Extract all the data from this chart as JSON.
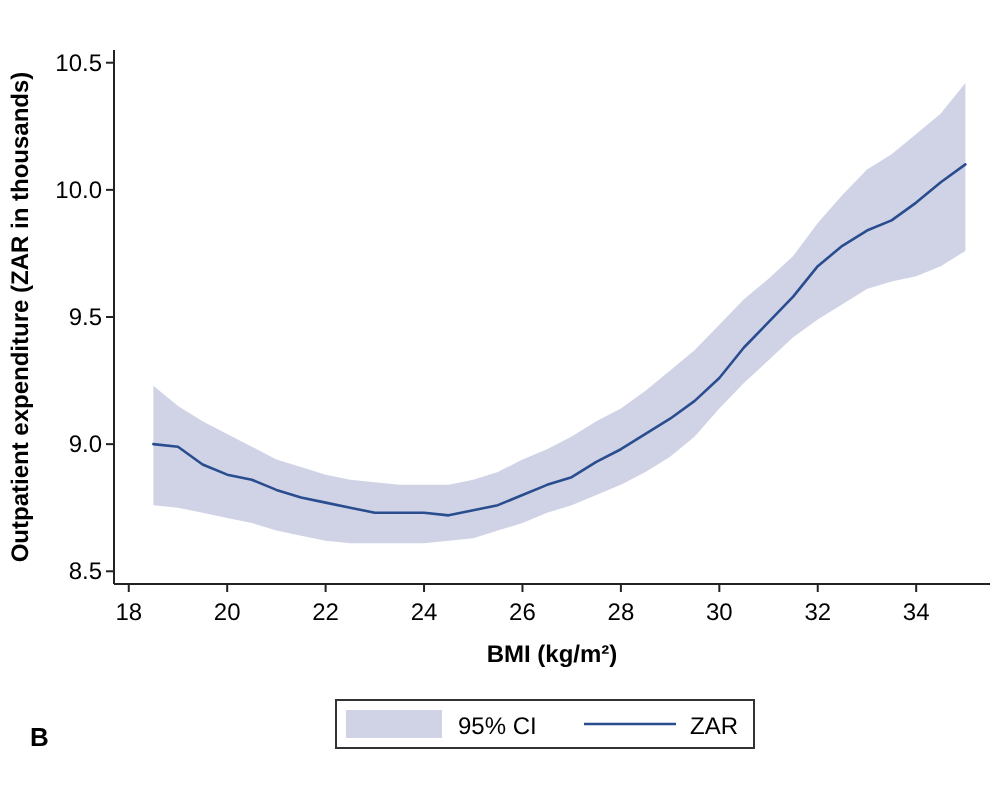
{
  "chart_data": {
    "type": "line",
    "xlabel": "BMI (kg/m²)",
    "ylabel": "Outpatient expenditure (ZAR in thousands)",
    "x": [
      18.5,
      19,
      19.5,
      20,
      20.5,
      21,
      21.5,
      22,
      22.5,
      23,
      23.5,
      24,
      24.5,
      25,
      25.5,
      26,
      26.5,
      27,
      27.5,
      28,
      28.5,
      29,
      29.5,
      30,
      30.5,
      31,
      31.5,
      32,
      32.5,
      33,
      33.5,
      34,
      34.5,
      35
    ],
    "series": [
      {
        "name": "ZAR",
        "color": "#2a4d8f",
        "values": [
          9.0,
          8.99,
          8.92,
          8.88,
          8.86,
          8.82,
          8.79,
          8.77,
          8.75,
          8.73,
          8.73,
          8.73,
          8.72,
          8.74,
          8.76,
          8.8,
          8.84,
          8.87,
          8.93,
          8.98,
          9.04,
          9.1,
          9.17,
          9.26,
          9.38,
          9.48,
          9.58,
          9.7,
          9.78,
          9.84,
          9.88,
          9.95,
          10.03,
          10.1
        ],
        "upper": [
          9.23,
          9.15,
          9.09,
          9.04,
          8.99,
          8.94,
          8.91,
          8.88,
          8.86,
          8.85,
          8.84,
          8.84,
          8.84,
          8.86,
          8.89,
          8.94,
          8.98,
          9.03,
          9.09,
          9.14,
          9.21,
          9.29,
          9.37,
          9.47,
          9.57,
          9.65,
          9.74,
          9.87,
          9.98,
          10.08,
          10.14,
          10.22,
          10.3,
          10.42
        ],
        "lower": [
          8.76,
          8.75,
          8.73,
          8.71,
          8.69,
          8.66,
          8.64,
          8.62,
          8.61,
          8.61,
          8.61,
          8.61,
          8.62,
          8.63,
          8.66,
          8.69,
          8.73,
          8.76,
          8.8,
          8.84,
          8.89,
          8.95,
          9.03,
          9.14,
          9.24,
          9.33,
          9.42,
          9.49,
          9.55,
          9.61,
          9.64,
          9.66,
          9.7,
          9.76
        ]
      }
    ],
    "annotations": [
      "B",
      "95% CI"
    ],
    "xlim": [
      17.7,
      35.5
    ],
    "ylim": [
      8.45,
      10.55
    ],
    "xticks": [
      18,
      20,
      22,
      24,
      26,
      28,
      30,
      32,
      34
    ],
    "yticks": [
      8.5,
      {
        "value": 9,
        "label": "9.0"
      },
      9.5,
      {
        "value": 10,
        "label": "10.0"
      },
      10.5
    ],
    "legend": "bottom",
    "line_style": "solid"
  }
}
